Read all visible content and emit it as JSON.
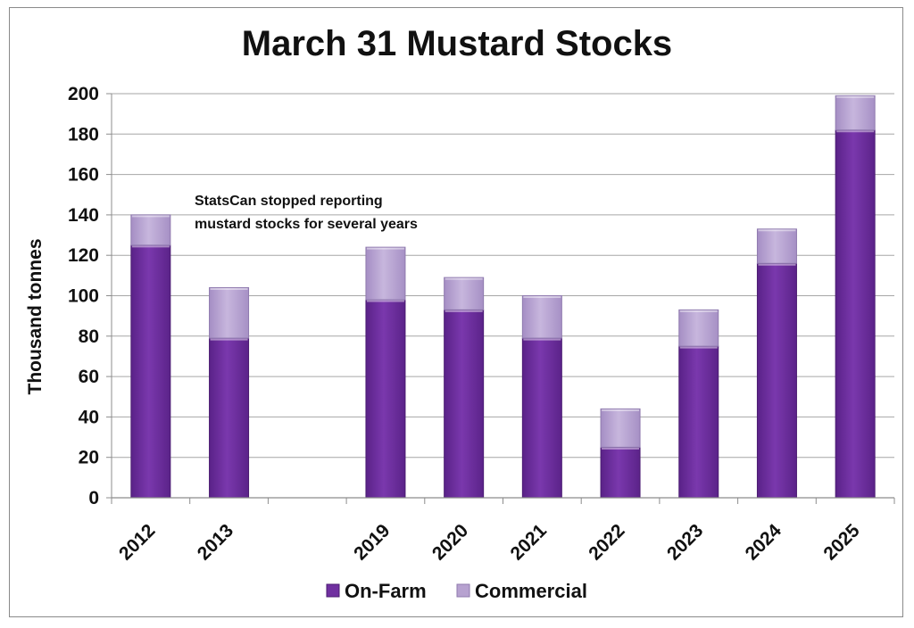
{
  "chart_data": {
    "type": "bar",
    "stacked": true,
    "title": "March 31 Mustard Stocks",
    "xlabel": "",
    "ylabel": "Thousand tonnes",
    "ylim": [
      0,
      200
    ],
    "yticks": [
      "0",
      "20",
      "40",
      "60",
      "80",
      "100",
      "120",
      "140",
      "160",
      "180",
      "200"
    ],
    "categories": [
      "2012",
      "2013",
      "",
      "2019",
      "2020",
      "2021",
      "2022",
      "2023",
      "2024",
      "2025"
    ],
    "series": [
      {
        "name": "On-Farm",
        "color": "#7030a0",
        "values": [
          125,
          79,
          null,
          98,
          93,
          79,
          25,
          75,
          116,
          182
        ]
      },
      {
        "name": "Commercial",
        "color": "#b7a2d0",
        "values": [
          15,
          25,
          null,
          26,
          16,
          21,
          19,
          18,
          17,
          17
        ]
      }
    ],
    "annotation": [
      "StatsCan stopped reporting",
      "mustard stocks for several years"
    ],
    "grid": true,
    "legend_position": "bottom"
  }
}
